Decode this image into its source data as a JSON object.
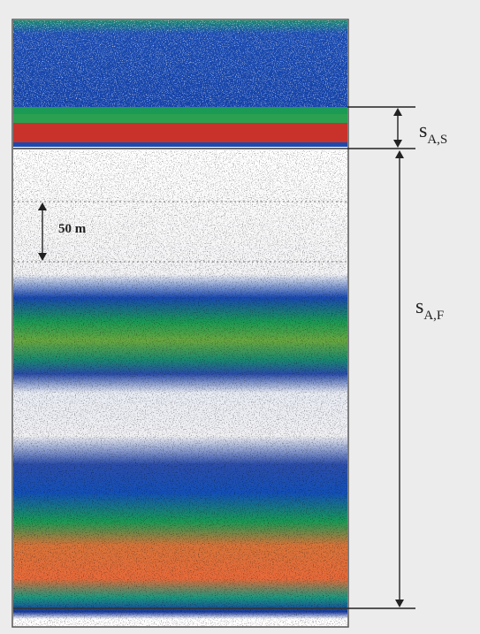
{
  "scale_label": "50 m",
  "annotations": [
    {
      "symbol": "s",
      "subscript": "A,S"
    },
    {
      "symbol": "s",
      "subscript": "A,F"
    }
  ]
}
